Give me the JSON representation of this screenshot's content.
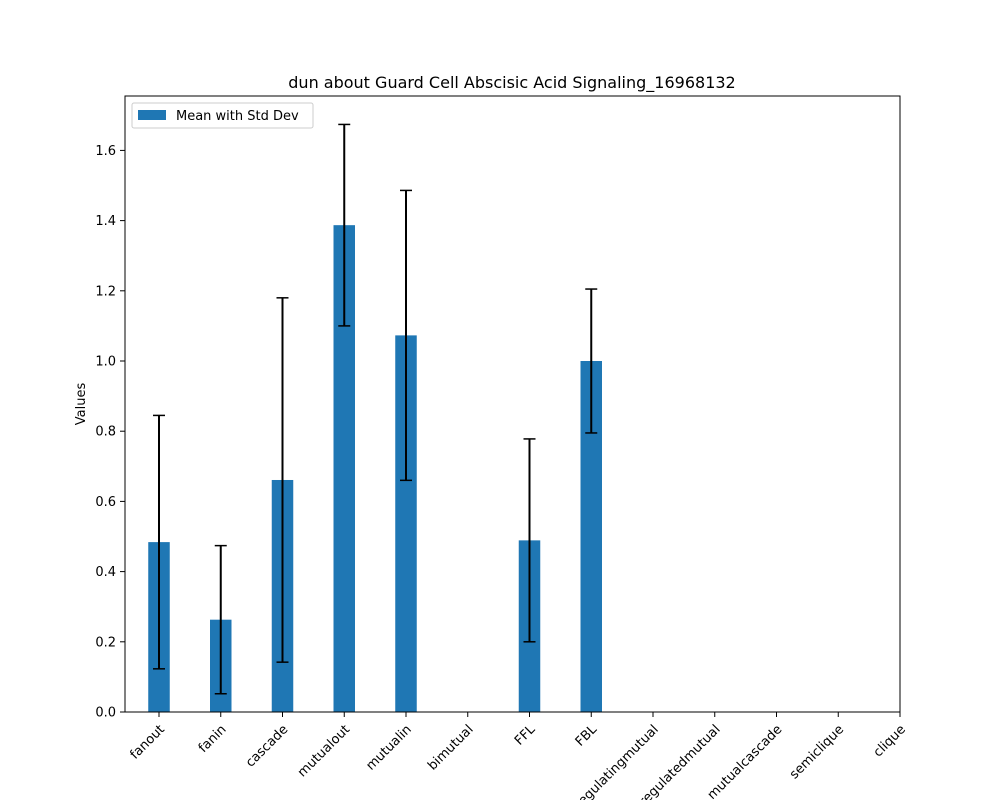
{
  "chart_data": {
    "type": "bar",
    "title": "dun about Guard Cell Abscisic Acid Signaling_16968132",
    "xlabel": "",
    "ylabel": "Values",
    "ylim": [
      0,
      1.755
    ],
    "yticks": [
      "0.0",
      "0.2",
      "0.4",
      "0.6",
      "0.8",
      "1.0",
      "1.2",
      "1.4",
      "1.6"
    ],
    "categories": [
      "fanout",
      "fanin",
      "cascade",
      "mutualout",
      "mutualin",
      "bimutual",
      "FFL",
      "FBL",
      "regulatingmutual",
      "regulatedmutual",
      "mutualcascade",
      "semiclique",
      "clique"
    ],
    "series": [
      {
        "name": "Mean with Std Dev",
        "color": "#1f77b4",
        "values": [
          0.484,
          0.263,
          0.661,
          1.387,
          1.073,
          0,
          0.489,
          1.0,
          0,
          0,
          0,
          0,
          0
        ],
        "errors": [
          0.361,
          0.211,
          0.519,
          0.287,
          0.413,
          0,
          0.289,
          0.205,
          0,
          0,
          0,
          0,
          0
        ]
      }
    ],
    "legend_position": "top-left",
    "grid": false
  }
}
